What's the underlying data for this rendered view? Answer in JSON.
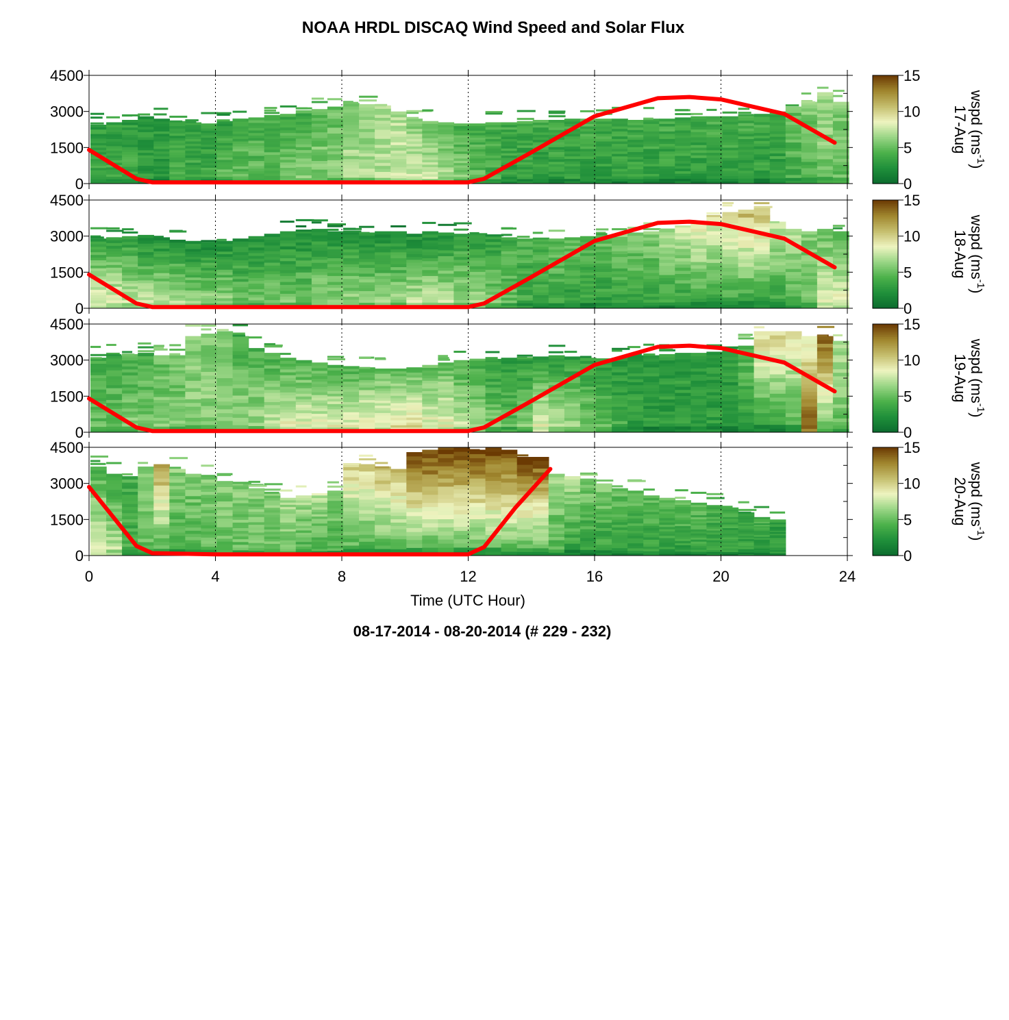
{
  "title": "NOAA HRDL DISCAQ Wind Speed and Solar Flux",
  "footer": "08-17-2014 - 08-20-2014   (# 229 - 232)",
  "colors": {
    "background": "#ffffff",
    "solar_flux_line": "#ff0000",
    "colormap": [
      "#0b6b2e",
      "#1f8f3a",
      "#4bb04a",
      "#98d584",
      "#eef4c0",
      "#c5be6e",
      "#a0862e",
      "#6b3a03"
    ]
  },
  "chart_data": [
    {
      "type": "heatmap",
      "panel_label": "17-Aug",
      "xlabel": "",
      "ylabel": "",
      "xlim": [
        0,
        24
      ],
      "ylim": [
        0,
        4500
      ],
      "y_ticks": [
        "0",
        "1500",
        "3000",
        "4500"
      ],
      "colorbar": {
        "label": "wspd (ms",
        "label_sup": "-1",
        "label_close": ")",
        "ticks": [
          "0",
          "5",
          "10",
          "15"
        ],
        "range": [
          0,
          15
        ]
      },
      "data_top_m": [
        2450,
        2550,
        2650,
        2800,
        2700,
        2600,
        2550,
        2500,
        2600,
        2700,
        2750,
        2850,
        2900,
        3050,
        3100,
        3200,
        3350,
        3300,
        3250,
        3000,
        2700,
        2600,
        2550,
        2500,
        2500,
        2550,
        2550,
        2600,
        2650,
        2650,
        2700,
        2700,
        2700,
        2700,
        2650,
        2700,
        2700,
        2750,
        2800,
        2800,
        2800,
        2850,
        2900,
        3000,
        3200,
        3400,
        3800,
        3400
      ],
      "wspd_low": [
        4,
        4,
        4,
        3,
        3,
        4,
        4,
        4,
        5,
        5,
        5,
        5,
        6,
        6,
        6,
        6,
        7,
        7,
        7,
        8,
        8,
        8,
        7,
        6,
        5,
        4,
        3,
        3,
        3,
        3,
        3,
        3,
        3,
        3,
        3,
        3,
        3,
        3,
        3,
        3,
        3,
        3,
        3,
        3,
        4,
        4,
        5,
        5
      ],
      "wspd_high": [
        3,
        3,
        3,
        3,
        3,
        3,
        3,
        3,
        3,
        4,
        4,
        4,
        4,
        4,
        5,
        5,
        6,
        6,
        7,
        7,
        6,
        5,
        5,
        4,
        4,
        4,
        4,
        4,
        4,
        4,
        4,
        4,
        4,
        4,
        4,
        4,
        4,
        4,
        4,
        4,
        4,
        4,
        4,
        4,
        5,
        6,
        7,
        6
      ],
      "solar_flux": {
        "x": [
          0,
          1.5,
          2,
          4,
          8,
          12,
          12.5,
          14,
          16,
          18,
          19,
          20,
          22,
          23.6
        ],
        "y": [
          1400,
          200,
          50,
          50,
          50,
          50,
          200,
          1300,
          2800,
          3550,
          3600,
          3500,
          2900,
          1700
        ]
      }
    },
    {
      "type": "heatmap",
      "panel_label": "18-Aug",
      "xlabel": "",
      "ylabel": "",
      "xlim": [
        0,
        24
      ],
      "ylim": [
        0,
        4500
      ],
      "y_ticks": [
        "0",
        "1500",
        "3000",
        "4500"
      ],
      "colorbar": {
        "label": "wspd (ms",
        "label_sup": "-1",
        "label_close": ")",
        "ticks": [
          "0",
          "5",
          "10",
          "15"
        ],
        "range": [
          0,
          15
        ]
      },
      "data_top_m": [
        2900,
        2950,
        3000,
        3050,
        2950,
        2850,
        2800,
        2750,
        2800,
        2900,
        3000,
        3100,
        3200,
        3250,
        3300,
        3200,
        3200,
        3150,
        3200,
        3200,
        3100,
        3200,
        3150,
        3100,
        3050,
        3000,
        2950,
        2900,
        2900,
        2900,
        2950,
        3000,
        3050,
        3100,
        3150,
        3200,
        3300,
        3400,
        3600,
        3800,
        4000,
        4100,
        4200,
        3600,
        3300,
        3200,
        3300,
        3200
      ],
      "wspd_low": [
        9,
        9,
        8,
        8,
        8,
        8,
        7,
        7,
        7,
        6,
        6,
        6,
        6,
        6,
        7,
        7,
        7,
        7,
        7,
        7,
        8,
        8,
        8,
        7,
        7,
        6,
        5,
        4,
        4,
        4,
        3,
        3,
        3,
        3,
        3,
        3,
        3,
        3,
        3,
        3,
        3,
        3,
        3,
        3,
        4,
        5,
        9,
        9
      ],
      "wspd_high": [
        3,
        3,
        3,
        2,
        2,
        2,
        2,
        2,
        2,
        2,
        2,
        2,
        2,
        2,
        2,
        2,
        2,
        2,
        2,
        2,
        2,
        2,
        2,
        3,
        3,
        3,
        4,
        4,
        4,
        5,
        5,
        5,
        5,
        6,
        6,
        6,
        7,
        8,
        9,
        9,
        10,
        11,
        11,
        8,
        7,
        6,
        5,
        4
      ],
      "solar_flux": {
        "x": [
          0,
          1.5,
          2,
          4,
          8,
          12,
          12.5,
          14,
          16,
          18,
          19,
          20,
          22,
          23.6
        ],
        "y": [
          1400,
          200,
          50,
          50,
          50,
          50,
          200,
          1300,
          2800,
          3550,
          3600,
          3500,
          2900,
          1700
        ]
      }
    },
    {
      "type": "heatmap",
      "panel_label": "19-Aug",
      "xlabel": "",
      "ylabel": "",
      "xlim": [
        0,
        24
      ],
      "ylim": [
        0,
        4500
      ],
      "y_ticks": [
        "0",
        "1500",
        "3000",
        "4500"
      ],
      "colorbar": {
        "label": "wspd (ms",
        "label_sup": "-1",
        "label_close": ")",
        "ticks": [
          "0",
          "5",
          "10",
          "15"
        ],
        "range": [
          0,
          15
        ]
      },
      "data_top_m": [
        3100,
        3200,
        3250,
        3300,
        3200,
        3200,
        4000,
        4100,
        4200,
        4000,
        3500,
        3300,
        3100,
        3000,
        2900,
        2800,
        2750,
        2700,
        2650,
        2650,
        2700,
        2800,
        2900,
        3000,
        3000,
        3050,
        3100,
        3100,
        3150,
        3200,
        3150,
        3100,
        3050,
        3100,
        3200,
        3200,
        3250,
        3300,
        3300,
        3350,
        3400,
        3600,
        4200,
        4200,
        4200,
        4000,
        4000,
        3800
      ],
      "wspd_low": [
        5,
        5,
        6,
        6,
        6,
        6,
        6,
        6,
        6,
        7,
        7,
        8,
        9,
        9,
        9,
        9,
        9,
        9,
        9,
        10,
        10,
        9,
        9,
        8,
        7,
        6,
        5,
        6,
        9,
        8,
        7,
        6,
        5,
        4,
        3,
        3,
        3,
        3,
        3,
        3,
        3,
        3,
        3,
        3,
        4,
        15,
        5,
        5
      ],
      "wspd_high": [
        4,
        4,
        4,
        4,
        5,
        5,
        6,
        6,
        6,
        4,
        4,
        4,
        4,
        4,
        4,
        4,
        4,
        5,
        5,
        5,
        5,
        5,
        5,
        4,
        4,
        3,
        3,
        3,
        3,
        3,
        3,
        3,
        3,
        3,
        3,
        3,
        3,
        3,
        3,
        3,
        3,
        5,
        10,
        10,
        9,
        8,
        14,
        7
      ],
      "solar_flux": {
        "x": [
          0,
          1.5,
          2,
          4,
          8,
          12,
          12.5,
          14,
          16,
          18,
          19,
          20,
          22,
          23.6
        ],
        "y": [
          1400,
          200,
          50,
          50,
          50,
          50,
          200,
          1300,
          2800,
          3550,
          3600,
          3500,
          2900,
          1700
        ]
      }
    },
    {
      "type": "heatmap",
      "panel_label": "20-Aug",
      "xlabel": "Time (UTC Hour)",
      "ylabel": "",
      "xlim": [
        0,
        24
      ],
      "ylim": [
        0,
        4500
      ],
      "x_ticks": [
        "0",
        "4",
        "8",
        "12",
        "16",
        "20",
        "24"
      ],
      "y_ticks": [
        "0",
        "1500",
        "3000",
        "4500"
      ],
      "colorbar": {
        "label": "wspd (ms",
        "label_sup": "-1",
        "label_close": ")",
        "ticks": [
          "0",
          "5",
          "10",
          "15"
        ],
        "range": [
          0,
          15
        ]
      },
      "data_top_m": [
        3700,
        3400,
        3300,
        3700,
        3800,
        3600,
        3400,
        3300,
        3100,
        3000,
        2800,
        2600,
        2400,
        2500,
        2500,
        2700,
        3700,
        3800,
        3700,
        3600,
        4300,
        4400,
        4400,
        4500,
        4400,
        4500,
        4400,
        4100,
        4100,
        3400,
        3300,
        3200,
        3000,
        2800,
        2700,
        2500,
        2400,
        2300,
        2200,
        2100,
        2000,
        1800,
        1600,
        1500
      ],
      "wspd_low": [
        9,
        8,
        4,
        5,
        4,
        4,
        4,
        5,
        5,
        5,
        5,
        5,
        5,
        4,
        4,
        4,
        4,
        4,
        4,
        4,
        4,
        4,
        4,
        4,
        4,
        4,
        4,
        4,
        4,
        4,
        3,
        3,
        3,
        3,
        3,
        3,
        3,
        3,
        3,
        3,
        3,
        3,
        3,
        3
      ],
      "wspd_high": [
        4,
        3,
        4,
        6,
        12,
        6,
        6,
        6,
        6,
        6,
        6,
        6,
        7,
        7,
        7,
        6,
        10,
        10,
        11,
        11,
        15,
        15,
        15,
        15,
        15,
        15,
        15,
        15,
        15,
        7,
        7,
        6,
        6,
        5,
        5,
        5,
        5,
        5,
        5,
        4,
        4,
        4,
        4,
        3
      ],
      "solar_flux": {
        "x": [
          0,
          1.5,
          2,
          4,
          8,
          12,
          12.5,
          13.5,
          14.6
        ],
        "y": [
          2850,
          400,
          100,
          50,
          50,
          50,
          350,
          2000,
          3600
        ]
      }
    }
  ]
}
